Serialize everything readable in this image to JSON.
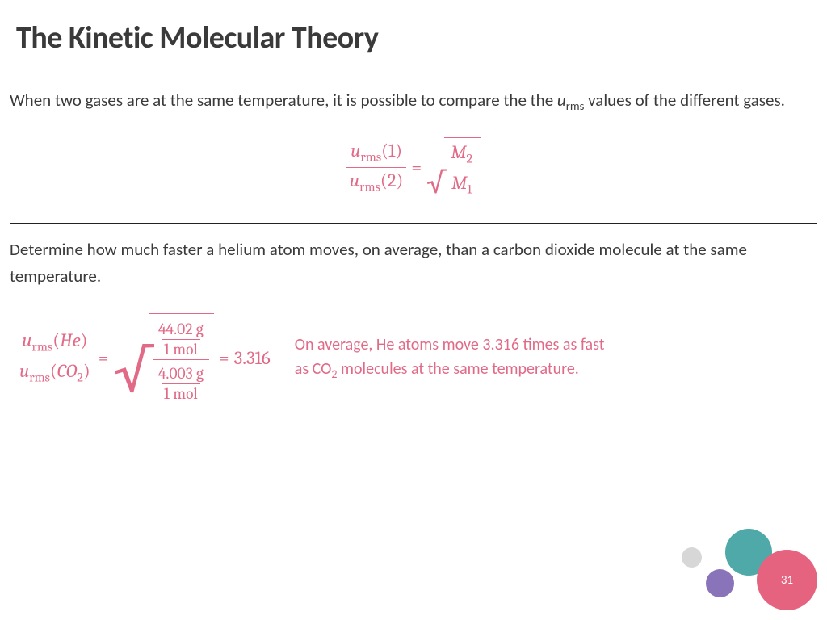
{
  "title": "The Kinetic Molecular Theory",
  "intro": {
    "before": "When two gases are at the same temperature, it is possible to compare the the ",
    "var": "u",
    "sub": "rms",
    "after": " values of the different gases."
  },
  "equation1": {
    "lhs_num_u": "u",
    "lhs_num_sub": "rms",
    "lhs_num_arg": "(1)",
    "lhs_den_u": "u",
    "lhs_den_sub": "rms",
    "lhs_den_arg": "(2)",
    "eq": "=",
    "rhs_num_M": "M",
    "rhs_num_sub": "2",
    "rhs_den_M": "M",
    "rhs_den_sub": "1"
  },
  "question": "Determine how much faster a helium atom moves, on average, than a carbon dioxide molecule at the same temperature.",
  "equation2": {
    "lhs_num_u": "u",
    "lhs_num_sub": "rms",
    "lhs_num_arg": "(",
    "lhs_num_el": "He",
    "lhs_num_close": ")",
    "lhs_den_u": "u",
    "lhs_den_sub": "rms",
    "lhs_den_arg": "(",
    "lhs_den_el": "CO",
    "lhs_den_el_sub": "2",
    "lhs_den_close": ")",
    "eq1": "=",
    "top_val": "44.02 g",
    "top_unit": "1 mol",
    "bot_val": "4.003 g",
    "bot_unit": "1 mol",
    "eq2": "=",
    "result": "3.316"
  },
  "answer": {
    "l1a": "On average, He atoms move 3.316 times as fast",
    "l2a": "as CO",
    "l2sub": "2",
    "l2b": " molecules at the same temperature."
  },
  "colors": {
    "accent": "#e16a87",
    "text": "#3a3a3a",
    "circle_big": "#e5637f",
    "circle_teal": "#4fa9a8",
    "circle_purple": "#8a74b9",
    "circle_grey": "#d7d7d7"
  },
  "page_number": "31"
}
